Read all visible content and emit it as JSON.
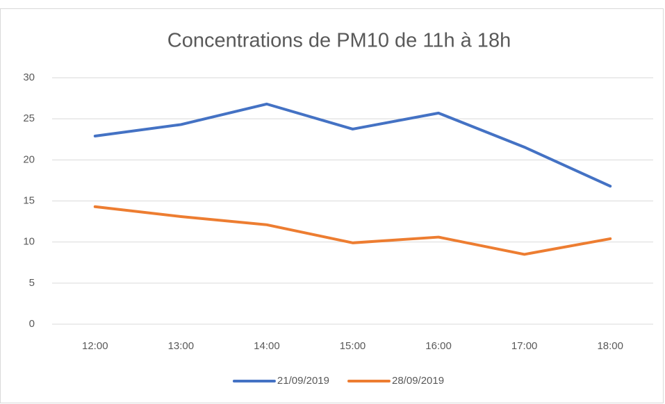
{
  "chart_data": {
    "type": "line",
    "title": "Concentrations de PM10 de 11h à 18h",
    "categories": [
      "12:00",
      "13:00",
      "14:00",
      "15:00",
      "16:00",
      "17:00",
      "18:00"
    ],
    "series": [
      {
        "name": "21/09/2019",
        "color": "#4472c4",
        "values": [
          22.9,
          24.3,
          26.8,
          23.75,
          25.7,
          21.55,
          16.8
        ]
      },
      {
        "name": "28/09/2019",
        "color": "#ed7d31",
        "values": [
          14.3,
          13.1,
          12.1,
          9.9,
          10.6,
          8.5,
          10.4
        ]
      }
    ],
    "ylim": [
      0,
      30
    ],
    "yticks": [
      0,
      5,
      10,
      15,
      20,
      25,
      30
    ],
    "grid": true,
    "legend": "bottom"
  }
}
